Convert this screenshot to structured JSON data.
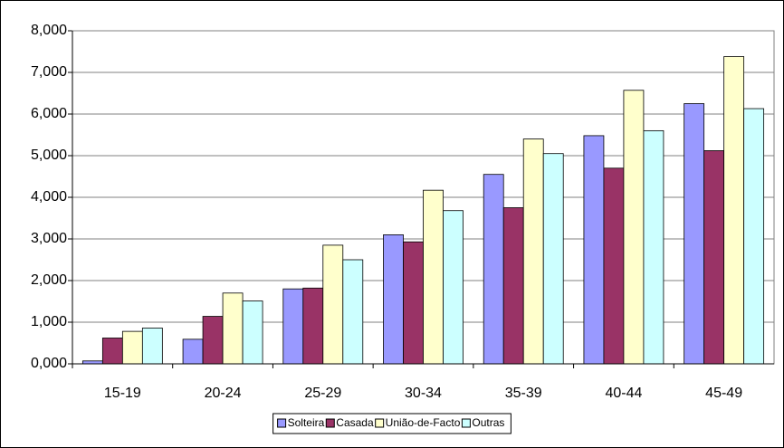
{
  "chart_data": {
    "type": "bar",
    "categories": [
      "15-19",
      "20-24",
      "25-29",
      "30-34",
      "35-39",
      "40-44",
      "45-49"
    ],
    "series": [
      {
        "name": "Solteira",
        "color": "#9999ff",
        "values": [
          70,
          590,
          1800,
          3100,
          4550,
          5480,
          6250
        ]
      },
      {
        "name": "Casada",
        "color": "#993366",
        "values": [
          620,
          1140,
          1820,
          2930,
          3750,
          4700,
          5120
        ]
      },
      {
        "name": "União-de-Facto",
        "color": "#ffffcc",
        "values": [
          780,
          1700,
          2850,
          4170,
          5400,
          6570,
          7380
        ]
      },
      {
        "name": "Outras",
        "color": "#ccffff",
        "values": [
          860,
          1510,
          2500,
          3680,
          5050,
          5600,
          6130
        ]
      }
    ],
    "ylim": [
      0,
      8000
    ],
    "yticks": [
      {
        "value": 0,
        "label": "0,000"
      },
      {
        "value": 1000,
        "label": "1,000"
      },
      {
        "value": 2000,
        "label": "2,000"
      },
      {
        "value": 3000,
        "label": "3,000"
      },
      {
        "value": 4000,
        "label": "4,000"
      },
      {
        "value": 5000,
        "label": "5,000"
      },
      {
        "value": 6000,
        "label": "6,000"
      },
      {
        "value": 7000,
        "label": "7,000"
      },
      {
        "value": 8000,
        "label": "8,000"
      }
    ],
    "grid": true,
    "legend": "bottom"
  }
}
